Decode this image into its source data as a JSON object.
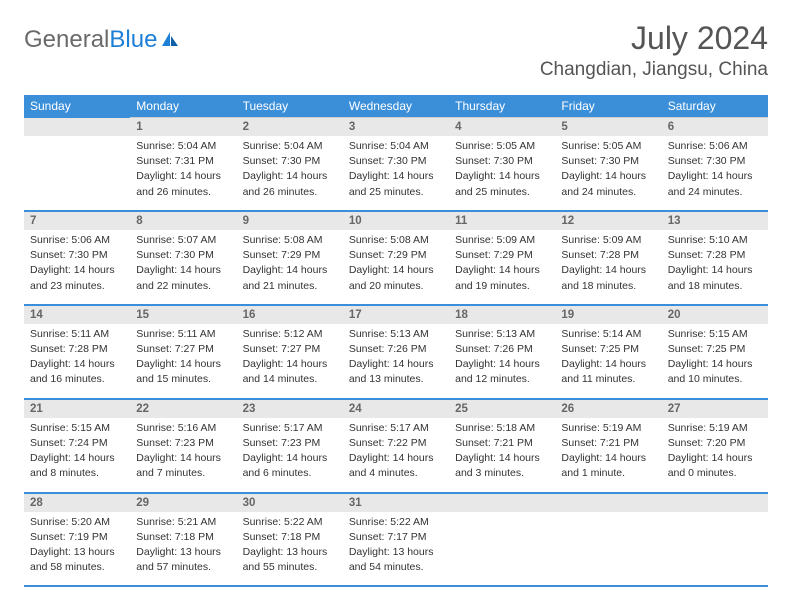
{
  "logo": {
    "text1": "General",
    "text2": "Blue"
  },
  "title": {
    "month": "July 2024",
    "location": "Changdian, Jiangsu, China"
  },
  "colors": {
    "header_bg": "#3b8fd9",
    "header_text": "#ffffff",
    "daynum_bg": "#e8e8e8",
    "daynum_text": "#666666",
    "body_text": "#333333",
    "divider": "#3b8fd9",
    "logo_gray": "#6a6a6a",
    "logo_blue": "#1e7fd6"
  },
  "weekdays": [
    "Sunday",
    "Monday",
    "Tuesday",
    "Wednesday",
    "Thursday",
    "Friday",
    "Saturday"
  ],
  "weeks": [
    [
      null,
      {
        "n": "1",
        "sr": "5:04 AM",
        "ss": "7:31 PM",
        "dl": "14 hours and 26 minutes."
      },
      {
        "n": "2",
        "sr": "5:04 AM",
        "ss": "7:30 PM",
        "dl": "14 hours and 26 minutes."
      },
      {
        "n": "3",
        "sr": "5:04 AM",
        "ss": "7:30 PM",
        "dl": "14 hours and 25 minutes."
      },
      {
        "n": "4",
        "sr": "5:05 AM",
        "ss": "7:30 PM",
        "dl": "14 hours and 25 minutes."
      },
      {
        "n": "5",
        "sr": "5:05 AM",
        "ss": "7:30 PM",
        "dl": "14 hours and 24 minutes."
      },
      {
        "n": "6",
        "sr": "5:06 AM",
        "ss": "7:30 PM",
        "dl": "14 hours and 24 minutes."
      }
    ],
    [
      {
        "n": "7",
        "sr": "5:06 AM",
        "ss": "7:30 PM",
        "dl": "14 hours and 23 minutes."
      },
      {
        "n": "8",
        "sr": "5:07 AM",
        "ss": "7:30 PM",
        "dl": "14 hours and 22 minutes."
      },
      {
        "n": "9",
        "sr": "5:08 AM",
        "ss": "7:29 PM",
        "dl": "14 hours and 21 minutes."
      },
      {
        "n": "10",
        "sr": "5:08 AM",
        "ss": "7:29 PM",
        "dl": "14 hours and 20 minutes."
      },
      {
        "n": "11",
        "sr": "5:09 AM",
        "ss": "7:29 PM",
        "dl": "14 hours and 19 minutes."
      },
      {
        "n": "12",
        "sr": "5:09 AM",
        "ss": "7:28 PM",
        "dl": "14 hours and 18 minutes."
      },
      {
        "n": "13",
        "sr": "5:10 AM",
        "ss": "7:28 PM",
        "dl": "14 hours and 18 minutes."
      }
    ],
    [
      {
        "n": "14",
        "sr": "5:11 AM",
        "ss": "7:28 PM",
        "dl": "14 hours and 16 minutes."
      },
      {
        "n": "15",
        "sr": "5:11 AM",
        "ss": "7:27 PM",
        "dl": "14 hours and 15 minutes."
      },
      {
        "n": "16",
        "sr": "5:12 AM",
        "ss": "7:27 PM",
        "dl": "14 hours and 14 minutes."
      },
      {
        "n": "17",
        "sr": "5:13 AM",
        "ss": "7:26 PM",
        "dl": "14 hours and 13 minutes."
      },
      {
        "n": "18",
        "sr": "5:13 AM",
        "ss": "7:26 PM",
        "dl": "14 hours and 12 minutes."
      },
      {
        "n": "19",
        "sr": "5:14 AM",
        "ss": "7:25 PM",
        "dl": "14 hours and 11 minutes."
      },
      {
        "n": "20",
        "sr": "5:15 AM",
        "ss": "7:25 PM",
        "dl": "14 hours and 10 minutes."
      }
    ],
    [
      {
        "n": "21",
        "sr": "5:15 AM",
        "ss": "7:24 PM",
        "dl": "14 hours and 8 minutes."
      },
      {
        "n": "22",
        "sr": "5:16 AM",
        "ss": "7:23 PM",
        "dl": "14 hours and 7 minutes."
      },
      {
        "n": "23",
        "sr": "5:17 AM",
        "ss": "7:23 PM",
        "dl": "14 hours and 6 minutes."
      },
      {
        "n": "24",
        "sr": "5:17 AM",
        "ss": "7:22 PM",
        "dl": "14 hours and 4 minutes."
      },
      {
        "n": "25",
        "sr": "5:18 AM",
        "ss": "7:21 PM",
        "dl": "14 hours and 3 minutes."
      },
      {
        "n": "26",
        "sr": "5:19 AM",
        "ss": "7:21 PM",
        "dl": "14 hours and 1 minute."
      },
      {
        "n": "27",
        "sr": "5:19 AM",
        "ss": "7:20 PM",
        "dl": "14 hours and 0 minutes."
      }
    ],
    [
      {
        "n": "28",
        "sr": "5:20 AM",
        "ss": "7:19 PM",
        "dl": "13 hours and 58 minutes."
      },
      {
        "n": "29",
        "sr": "5:21 AM",
        "ss": "7:18 PM",
        "dl": "13 hours and 57 minutes."
      },
      {
        "n": "30",
        "sr": "5:22 AM",
        "ss": "7:18 PM",
        "dl": "13 hours and 55 minutes."
      },
      {
        "n": "31",
        "sr": "5:22 AM",
        "ss": "7:17 PM",
        "dl": "13 hours and 54 minutes."
      },
      null,
      null,
      null
    ]
  ],
  "labels": {
    "sunrise": "Sunrise:",
    "sunset": "Sunset:",
    "daylight": "Daylight:"
  }
}
